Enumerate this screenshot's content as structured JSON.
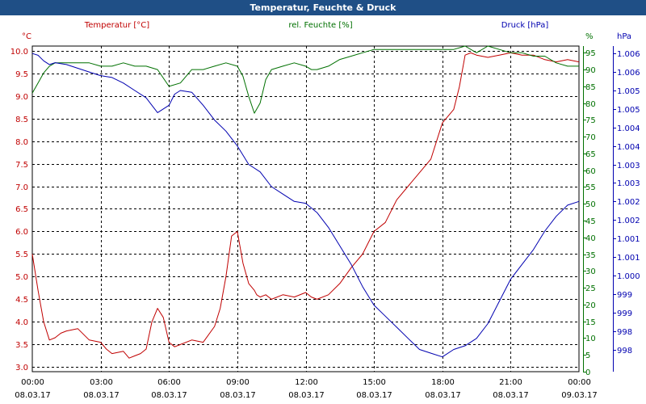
{
  "window": {
    "title": "Temperatur, Feuchte & Druck"
  },
  "colors": {
    "title_bar": "#1f4f86",
    "temperature": "#c00000",
    "humidity": "#007000",
    "pressure": "#0000b0",
    "grid": "#000000"
  },
  "chart_data": {
    "type": "line",
    "title": "Temperatur, Feuchte & Druck",
    "grid": true,
    "x_ticks": [
      {
        "time": "00:00",
        "date": "08.03.17"
      },
      {
        "time": "03:00",
        "date": "08.03.17"
      },
      {
        "time": "06:00",
        "date": "08.03.17"
      },
      {
        "time": "09:00",
        "date": "08.03.17"
      },
      {
        "time": "12:00",
        "date": "08.03.17"
      },
      {
        "time": "15:00",
        "date": "08.03.17"
      },
      {
        "time": "18:00",
        "date": "08.03.17"
      },
      {
        "time": "21:00",
        "date": "08.03.17"
      },
      {
        "time": "00:00",
        "date": "09.03.17"
      }
    ],
    "axes": {
      "temperature": {
        "label": "Temperatur [°C]",
        "unit": "°C",
        "ylim": [
          2.9,
          10.1
        ],
        "ticks": [
          "3.0",
          "3.5",
          "4.0",
          "4.5",
          "5.0",
          "5.5",
          "6.0",
          "6.5",
          "7.0",
          "7.5",
          "8.0",
          "8.5",
          "9.0",
          "9.5",
          "10.0"
        ]
      },
      "humidity": {
        "label": "rel. Feuchte [%]",
        "unit": "%",
        "ylim": [
          0,
          97
        ],
        "ticks": [
          "0",
          "5",
          "10",
          "15",
          "20",
          "25",
          "30",
          "35",
          "40",
          "45",
          "50",
          "55",
          "60",
          "65",
          "70",
          "75",
          "80",
          "85",
          "90",
          "95"
        ],
        "top_label": "%"
      },
      "pressure": {
        "label": "Druck [hPa]",
        "unit": "hPa",
        "ylim": [
          997.4,
          1006.2
        ],
        "ticks": [
          "998",
          "998",
          "999",
          "999",
          "1.000",
          "1.001",
          "1.001",
          "1.002",
          "1.002",
          "1.003",
          "1.003",
          "1.004",
          "1.004",
          "1.005",
          "1.005",
          "1.006",
          "1.006"
        ]
      }
    },
    "series": [
      {
        "name": "Temperatur [°C]",
        "axis": "temperature",
        "x": [
          0,
          0.25,
          0.5,
          0.75,
          1,
          1.25,
          1.5,
          2,
          2.5,
          3,
          3.25,
          3.5,
          4,
          4.25,
          4.5,
          4.75,
          5,
          5.25,
          5.5,
          5.75,
          6,
          6.25,
          6.5,
          7,
          7.5,
          8,
          8.25,
          8.5,
          8.75,
          9,
          9.25,
          9.5,
          9.75,
          9.85,
          10,
          10.25,
          10.5,
          11,
          11.5,
          12,
          12.25,
          12.5,
          13,
          13.5,
          14,
          14.5,
          15,
          15.5,
          16,
          16.5,
          17,
          17.5,
          18,
          18.5,
          18.75,
          19,
          19.25,
          19.5,
          20,
          20.5,
          21,
          21.5,
          22,
          22.5,
          23,
          23.5,
          24
        ],
        "y": [
          5.5,
          4.7,
          4.0,
          3.6,
          3.65,
          3.75,
          3.8,
          3.85,
          3.6,
          3.55,
          3.4,
          3.3,
          3.35,
          3.2,
          3.25,
          3.3,
          3.4,
          4.0,
          4.3,
          4.1,
          3.55,
          3.45,
          3.5,
          3.6,
          3.55,
          3.9,
          4.3,
          5.0,
          5.9,
          6.0,
          5.3,
          4.85,
          4.7,
          4.6,
          4.55,
          4.6,
          4.5,
          4.6,
          4.55,
          4.65,
          4.55,
          4.5,
          4.6,
          4.85,
          5.2,
          5.5,
          6.0,
          6.2,
          6.7,
          7.0,
          7.3,
          7.6,
          8.4,
          8.7,
          9.2,
          9.9,
          9.95,
          9.9,
          9.85,
          9.9,
          9.95,
          9.9,
          9.9,
          9.8,
          9.75,
          9.8,
          9.75
        ]
      },
      {
        "name": "rel. Feuchte [%]",
        "axis": "humidity",
        "x": [
          0,
          0.25,
          0.5,
          0.75,
          1,
          1.5,
          2,
          2.5,
          3,
          3.5,
          4,
          4.5,
          5,
          5.5,
          6,
          6.5,
          7,
          7.5,
          8,
          8.5,
          9,
          9.25,
          9.5,
          9.75,
          10,
          10.25,
          10.5,
          11,
          11.5,
          12,
          12.25,
          12.5,
          13,
          13.5,
          14,
          14.5,
          15,
          15.5,
          16,
          16.5,
          17,
          17.5,
          18,
          18.5,
          19,
          19.5,
          20,
          20.5,
          21,
          21.5,
          22,
          22.5,
          23,
          23.5,
          24
        ],
        "y": [
          83,
          86,
          89,
          91,
          92,
          92,
          92,
          92,
          91,
          91,
          92,
          91,
          91,
          90,
          85,
          86,
          90,
          90,
          91,
          92,
          91,
          88,
          82,
          77,
          80,
          87,
          90,
          91,
          92,
          91,
          90,
          90,
          91,
          93,
          94,
          95,
          96,
          96,
          96,
          96,
          96,
          96,
          96,
          96,
          97,
          95,
          97,
          96,
          95,
          95,
          94,
          94,
          92,
          91,
          91
        ]
      },
      {
        "name": "Druck [hPa]",
        "axis": "pressure",
        "x": [
          0,
          0.25,
          0.5,
          0.75,
          1,
          1.5,
          2,
          2.5,
          3,
          3.5,
          4,
          4.5,
          5,
          5.5,
          6,
          6.25,
          6.5,
          7,
          7.5,
          8,
          8.5,
          9,
          9.5,
          10,
          10.5,
          11,
          11.5,
          12,
          12.5,
          13,
          13.5,
          14,
          14.5,
          15,
          15.5,
          16,
          16.5,
          17,
          17.5,
          18,
          18.5,
          19,
          19.5,
          20,
          20.5,
          21,
          21.5,
          22,
          22.5,
          23,
          23.5,
          24
        ],
        "y": [
          1006.0,
          1005.95,
          1005.8,
          1005.7,
          1005.75,
          1005.7,
          1005.6,
          1005.5,
          1005.4,
          1005.35,
          1005.2,
          1005.0,
          1004.8,
          1004.4,
          1004.6,
          1004.9,
          1005.0,
          1004.95,
          1004.6,
          1004.2,
          1003.9,
          1003.5,
          1003.0,
          1002.8,
          1002.4,
          1002.2,
          1002.0,
          1001.95,
          1001.7,
          1001.3,
          1000.8,
          1000.3,
          999.7,
          999.2,
          998.9,
          998.6,
          998.3,
          998.0,
          997.9,
          997.8,
          998.0,
          998.1,
          998.3,
          998.7,
          999.3,
          999.9,
          1000.3,
          1000.7,
          1001.2,
          1001.6,
          1001.9,
          1002.0
        ]
      }
    ]
  }
}
